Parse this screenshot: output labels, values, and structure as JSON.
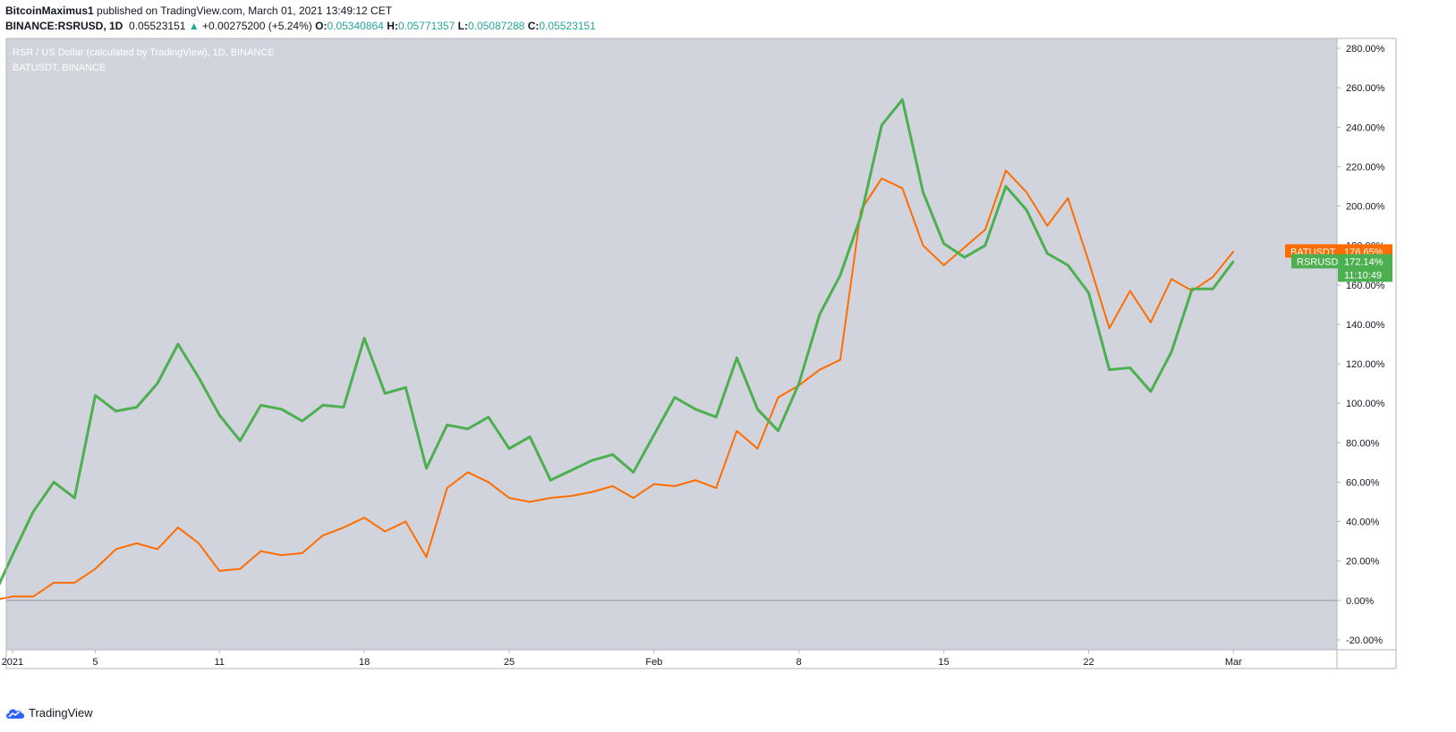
{
  "header": {
    "author": "BitcoinMaximus1",
    "published_text": "published on TradingView.com, March 01, 2021 13:49:12 CET",
    "symbol": "BINANCE:RSRUSD, 1D",
    "price": "0.05523151",
    "change_arrow": "▲",
    "change": "+0.00275200 (+5.24%)",
    "o_label": "O:",
    "o_value": "0.05340864",
    "h_label": "H:",
    "h_value": "0.05771357",
    "l_label": "L:",
    "l_value": "0.05087288",
    "c_label": "C:",
    "c_value": "0.05523151"
  },
  "legend": {
    "line1": "RSR / US Dollar (calculated by TradingView), 1D, BINANCE",
    "line2": "BATUSDT, BINANCE"
  },
  "price_labels": {
    "bat_name": "BATUSDT",
    "bat_value": "176.65%",
    "rsr_name": "RSRUSD",
    "rsr_value": "172.14%",
    "countdown": "11:10:49"
  },
  "footer": {
    "brand": "TradingView"
  },
  "colors": {
    "background": "#d1d4dc",
    "rsr": "#4caf50",
    "bat": "#ff6d00",
    "zero_line": "#9598a1"
  },
  "chart_data": {
    "type": "line",
    "y_axis_scale": "percent",
    "ylim": [
      -25,
      285
    ],
    "y_ticks": [
      "280.00%",
      "260.00%",
      "240.00%",
      "220.00%",
      "200.00%",
      "180.00%",
      "160.00%",
      "140.00%",
      "120.00%",
      "100.00%",
      "80.00%",
      "60.00%",
      "40.00%",
      "20.00%",
      "0.00%",
      "-20.00%"
    ],
    "y_tick_values": [
      280,
      260,
      240,
      220,
      200,
      180,
      160,
      140,
      120,
      100,
      80,
      60,
      40,
      20,
      0,
      -20
    ],
    "x_ticks": [
      {
        "label": "2021",
        "day": 1
      },
      {
        "label": "5",
        "day": 5
      },
      {
        "label": "11",
        "day": 11
      },
      {
        "label": "18",
        "day": 18
      },
      {
        "label": "25",
        "day": 25
      },
      {
        "label": "Feb",
        "day": 32
      },
      {
        "label": "8",
        "day": 39
      },
      {
        "label": "15",
        "day": 46
      },
      {
        "label": "22",
        "day": 53
      },
      {
        "label": "Mar",
        "day": 60
      }
    ],
    "x_range_days": [
      0.7,
      65
    ],
    "x_start": "2020-12-31",
    "series": [
      {
        "name": "RSRUSD",
        "color": "#4caf50",
        "values": [
          0,
          23,
          45,
          60,
          52,
          104,
          96,
          98,
          110,
          130,
          113,
          94,
          81,
          99,
          97,
          91,
          99,
          98,
          133,
          105,
          108,
          67,
          89,
          87,
          93,
          77,
          83,
          61,
          66,
          71,
          74,
          65,
          84,
          103,
          97,
          93,
          123,
          97,
          86,
          110,
          145,
          165,
          195,
          241,
          254,
          207,
          181,
          174,
          180,
          210,
          198,
          176,
          170,
          156,
          117,
          118,
          106,
          126,
          158,
          158,
          172
        ]
      },
      {
        "name": "BATUSDT",
        "color": "#ff6d00",
        "values": [
          0,
          2,
          2,
          9,
          9,
          16,
          26,
          29,
          26,
          37,
          29,
          15,
          16,
          25,
          23,
          24,
          33,
          37,
          42,
          35,
          40,
          22,
          57,
          65,
          60,
          52,
          50,
          52,
          53,
          55,
          58,
          52,
          59,
          58,
          61,
          57,
          86,
          77,
          103,
          109,
          117,
          122,
          198,
          214,
          209,
          180,
          170,
          179,
          188,
          218,
          207,
          190,
          204,
          172,
          138,
          157,
          141,
          163,
          157,
          164,
          177
        ]
      }
    ]
  }
}
